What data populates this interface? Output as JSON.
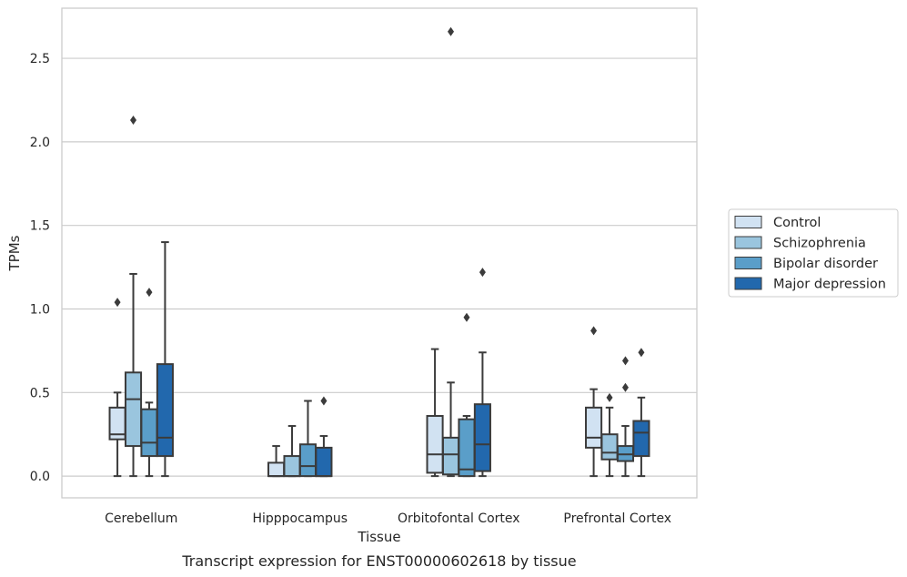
{
  "chart_data": {
    "type": "box",
    "xlabel": "Tissue",
    "ylabel": "TPMs",
    "caption": "Transcript expression for ENST00000602618 by tissue",
    "ylim": [
      -0.13,
      2.8
    ],
    "yticks": [
      0.0,
      0.5,
      1.0,
      1.5,
      2.0,
      2.5
    ],
    "ytick_labels": [
      "0.0",
      "0.5",
      "1.0",
      "1.5",
      "2.0",
      "2.5"
    ],
    "grid": "horizontal",
    "legend_position": "right",
    "categories": [
      "Cerebellum",
      "Hipppocampus",
      "Orbitofontal Cortex",
      "Prefrontal Cortex"
    ],
    "series": [
      {
        "name": "Control",
        "color": "#d1e2f2",
        "boxes": [
          {
            "whislo": 0.0,
            "q1": 0.22,
            "med": 0.25,
            "q3": 0.41,
            "whishi": 0.5,
            "fliers": [
              1.04
            ]
          },
          {
            "whislo": 0.0,
            "q1": 0.0,
            "med": 0.0,
            "q3": 0.08,
            "whishi": 0.18,
            "fliers": []
          },
          {
            "whislo": 0.0,
            "q1": 0.02,
            "med": 0.13,
            "q3": 0.36,
            "whishi": 0.76,
            "fliers": []
          },
          {
            "whislo": 0.0,
            "q1": 0.17,
            "med": 0.23,
            "q3": 0.41,
            "whishi": 0.52,
            "fliers": [
              0.87
            ]
          }
        ]
      },
      {
        "name": "Schizophrenia",
        "color": "#9ac5de",
        "boxes": [
          {
            "whislo": 0.0,
            "q1": 0.18,
            "med": 0.46,
            "q3": 0.62,
            "whishi": 1.21,
            "fliers": [
              2.13
            ]
          },
          {
            "whislo": 0.0,
            "q1": 0.0,
            "med": 0.0,
            "q3": 0.12,
            "whishi": 0.3,
            "fliers": []
          },
          {
            "whislo": 0.0,
            "q1": 0.01,
            "med": 0.13,
            "q3": 0.23,
            "whishi": 0.56,
            "fliers": [
              2.66
            ]
          },
          {
            "whislo": 0.0,
            "q1": 0.1,
            "med": 0.14,
            "q3": 0.25,
            "whishi": 0.41,
            "fliers": [
              0.47
            ]
          }
        ]
      },
      {
        "name": "Bipolar disorder",
        "color": "#5a9ec9",
        "boxes": [
          {
            "whislo": 0.0,
            "q1": 0.12,
            "med": 0.2,
            "q3": 0.4,
            "whishi": 0.44,
            "fliers": [
              1.1
            ]
          },
          {
            "whislo": 0.0,
            "q1": 0.0,
            "med": 0.06,
            "q3": 0.19,
            "whishi": 0.45,
            "fliers": []
          },
          {
            "whislo": 0.0,
            "q1": 0.0,
            "med": 0.04,
            "q3": 0.34,
            "whishi": 0.36,
            "fliers": [
              0.95
            ]
          },
          {
            "whislo": 0.0,
            "q1": 0.09,
            "med": 0.13,
            "q3": 0.18,
            "whishi": 0.3,
            "fliers": [
              0.53,
              0.69
            ]
          }
        ]
      },
      {
        "name": "Major depression",
        "color": "#2268ad",
        "boxes": [
          {
            "whislo": 0.0,
            "q1": 0.12,
            "med": 0.23,
            "q3": 0.67,
            "whishi": 1.4,
            "fliers": []
          },
          {
            "whislo": 0.0,
            "q1": 0.0,
            "med": 0.0,
            "q3": 0.17,
            "whishi": 0.24,
            "fliers": [
              0.45
            ]
          },
          {
            "whislo": 0.0,
            "q1": 0.03,
            "med": 0.19,
            "q3": 0.43,
            "whishi": 0.74,
            "fliers": [
              1.22
            ]
          },
          {
            "whislo": 0.0,
            "q1": 0.12,
            "med": 0.26,
            "q3": 0.33,
            "whishi": 0.47,
            "fliers": [
              0.74
            ]
          }
        ]
      }
    ]
  }
}
